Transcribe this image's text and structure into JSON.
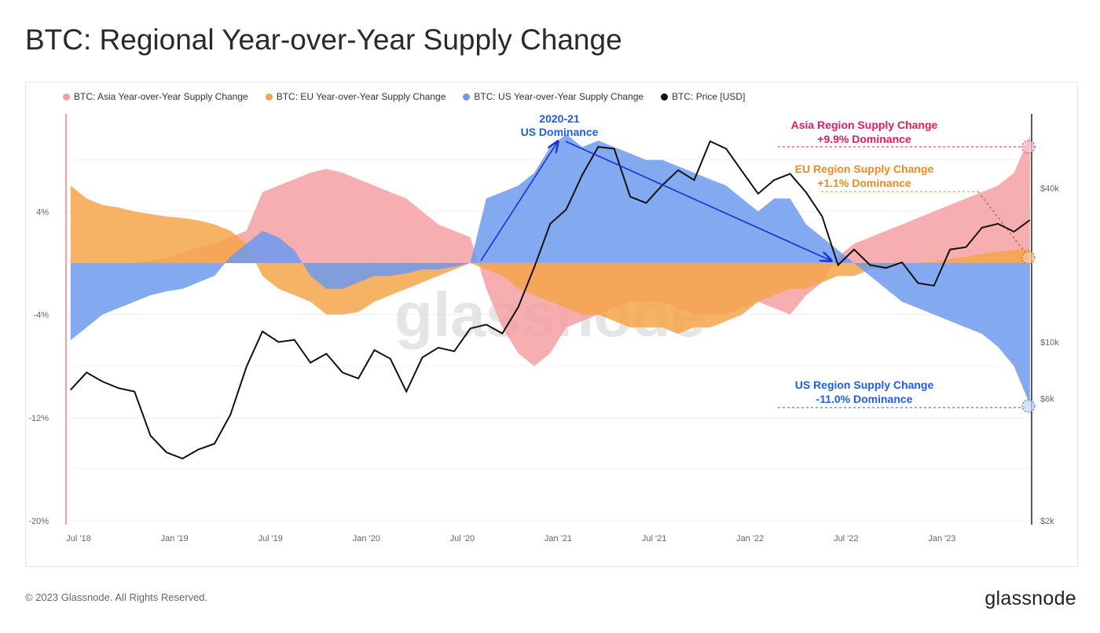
{
  "title": "BTC: Regional Year-over-Year Supply Change",
  "footer": "© 2023 Glassnode. All Rights Reserved.",
  "logo": "glassnode",
  "watermark": "glassnode",
  "chart_data": {
    "type": "area",
    "title": "BTC: Regional Year-over-Year Supply Change",
    "x": [
      "2018-06",
      "2018-07",
      "2018-08",
      "2018-09",
      "2018-10",
      "2018-11",
      "2018-12",
      "2019-01",
      "2019-02",
      "2019-03",
      "2019-04",
      "2019-05",
      "2019-06",
      "2019-07",
      "2019-08",
      "2019-09",
      "2019-10",
      "2019-11",
      "2019-12",
      "2020-01",
      "2020-02",
      "2020-03",
      "2020-04",
      "2020-05",
      "2020-06",
      "2020-07",
      "2020-08",
      "2020-09",
      "2020-10",
      "2020-11",
      "2020-12",
      "2021-01",
      "2021-02",
      "2021-03",
      "2021-04",
      "2021-05",
      "2021-06",
      "2021-07",
      "2021-08",
      "2021-09",
      "2021-10",
      "2021-11",
      "2021-12",
      "2022-01",
      "2022-02",
      "2022-03",
      "2022-04",
      "2022-05",
      "2022-06",
      "2022-07",
      "2022-08",
      "2022-09",
      "2022-10",
      "2022-11",
      "2022-12",
      "2023-01",
      "2023-02",
      "2023-03",
      "2023-04",
      "2023-05",
      "2023-06"
    ],
    "series": [
      {
        "name": "BTC: Asia Year-over-Year Supply Change",
        "color": "#f4a0a3",
        "axis": "left",
        "values": [
          0,
          0,
          0,
          0,
          0,
          0.2,
          0.4,
          0.8,
          1.2,
          1.5,
          2,
          2.5,
          5.5,
          6,
          6.5,
          7,
          7.3,
          7,
          6.5,
          6,
          5.5,
          5,
          4,
          3,
          2.5,
          2,
          -2,
          -5,
          -7,
          -8,
          -7,
          -5,
          -4.5,
          -4,
          -3.5,
          -3,
          -3,
          -3,
          -3.5,
          -4,
          -4,
          -4,
          -3.5,
          -3,
          -3.5,
          -4,
          -2.5,
          -1.5,
          0.5,
          1.5,
          2,
          2.5,
          3,
          3.5,
          4,
          4.5,
          5,
          5.5,
          6,
          7,
          9.9
        ]
      },
      {
        "name": "BTC: EU Year-over-Year Supply Change",
        "color": "#f5a54a",
        "axis": "left",
        "values": [
          6,
          5,
          4.5,
          4.3,
          4,
          3.8,
          3.6,
          3.5,
          3.3,
          3,
          2.5,
          1.5,
          -1,
          -2,
          -2.5,
          -3,
          -4,
          -4,
          -3.8,
          -3,
          -2.5,
          -2,
          -1.5,
          -1,
          -0.5,
          0,
          -0.5,
          -1,
          -2,
          -2.5,
          -3,
          -3.5,
          -4,
          -4,
          -4.5,
          -5,
          -5,
          -5,
          -5.5,
          -5,
          -5,
          -4.5,
          -4,
          -3,
          -2.5,
          -2,
          -2,
          -1.5,
          -1,
          -1,
          -0.5,
          -0.5,
          0,
          0,
          0.1,
          0.3,
          0.5,
          0.7,
          0.9,
          1,
          1.1
        ]
      },
      {
        "name": "BTC: US Year-over-Year Supply Change",
        "color": "#6d9aef",
        "axis": "left",
        "values": [
          -6,
          -5,
          -4,
          -3.5,
          -3,
          -2.5,
          -2.2,
          -2,
          -1.5,
          -1,
          0.5,
          1.5,
          2.5,
          2,
          1,
          -1,
          -2,
          -2,
          -1.5,
          -1,
          -1,
          -0.8,
          -0.5,
          -0.5,
          -0.3,
          0,
          5,
          5.5,
          6,
          7,
          9,
          10,
          9,
          9.5,
          9,
          8.5,
          8,
          8,
          7.5,
          7,
          6.5,
          6,
          5,
          4,
          5,
          5,
          3,
          2,
          1,
          0,
          -1,
          -2,
          -3,
          -3.5,
          -4,
          -4.5,
          -5,
          -5.5,
          -6.5,
          -8,
          -11
        ]
      },
      {
        "name": "BTC: Price [USD]",
        "color": "#111111",
        "axis": "right",
        "values": [
          6500,
          7600,
          7000,
          6600,
          6400,
          4300,
          3700,
          3500,
          3800,
          4000,
          5200,
          8000,
          11000,
          10000,
          10200,
          8300,
          9000,
          7600,
          7200,
          9300,
          8600,
          6400,
          8700,
          9500,
          9200,
          11300,
          11700,
          10800,
          13700,
          19600,
          29000,
          33000,
          45000,
          58000,
          57000,
          37000,
          35000,
          41000,
          47000,
          43000,
          61000,
          57000,
          46500,
          38000,
          43000,
          45500,
          38500,
          31000,
          20000,
          23000,
          20000,
          19500,
          20500,
          17000,
          16600,
          23000,
          23500,
          28000,
          29000,
          27000,
          30000
        ]
      }
    ],
    "xticks": [
      "Jul '18",
      "Jan '19",
      "Jul '19",
      "Jan '20",
      "Jul '20",
      "Jan '21",
      "Jul '21",
      "Jan '22",
      "Jul '22",
      "Jan '23"
    ],
    "yticks_left": [
      {
        "v": 4,
        "label": "4%"
      },
      {
        "v": -4,
        "label": "-4%"
      },
      {
        "v": -12,
        "label": "-12%"
      },
      {
        "v": -20,
        "label": "-20%"
      }
    ],
    "yticks_right": [
      {
        "v": 40000,
        "label": "$40k"
      },
      {
        "v": 10000,
        "label": "$10k"
      },
      {
        "v": 6000,
        "label": "$6k"
      },
      {
        "v": 2000,
        "label": "$2k"
      }
    ],
    "ylim_left": [
      -20,
      12
    ],
    "ylim_right": [
      2000,
      82000
    ],
    "right_scale": "log",
    "grid": true,
    "legend": "top-left",
    "annotations": {
      "us_dominance": [
        "2020-21",
        "US Dominance"
      ],
      "asia": [
        "Asia Region Supply Change",
        "+9.9% Dominance"
      ],
      "eu": [
        "EU Region Supply Change",
        "+1.1% Dominance"
      ],
      "us": [
        "US Region Supply Change",
        "-11.0% Dominance"
      ],
      "colors": {
        "asia": "#e8185c",
        "eu": "#f08a1c",
        "us": "#1f5ee0",
        "arrow": "#1a2fd6"
      }
    }
  }
}
